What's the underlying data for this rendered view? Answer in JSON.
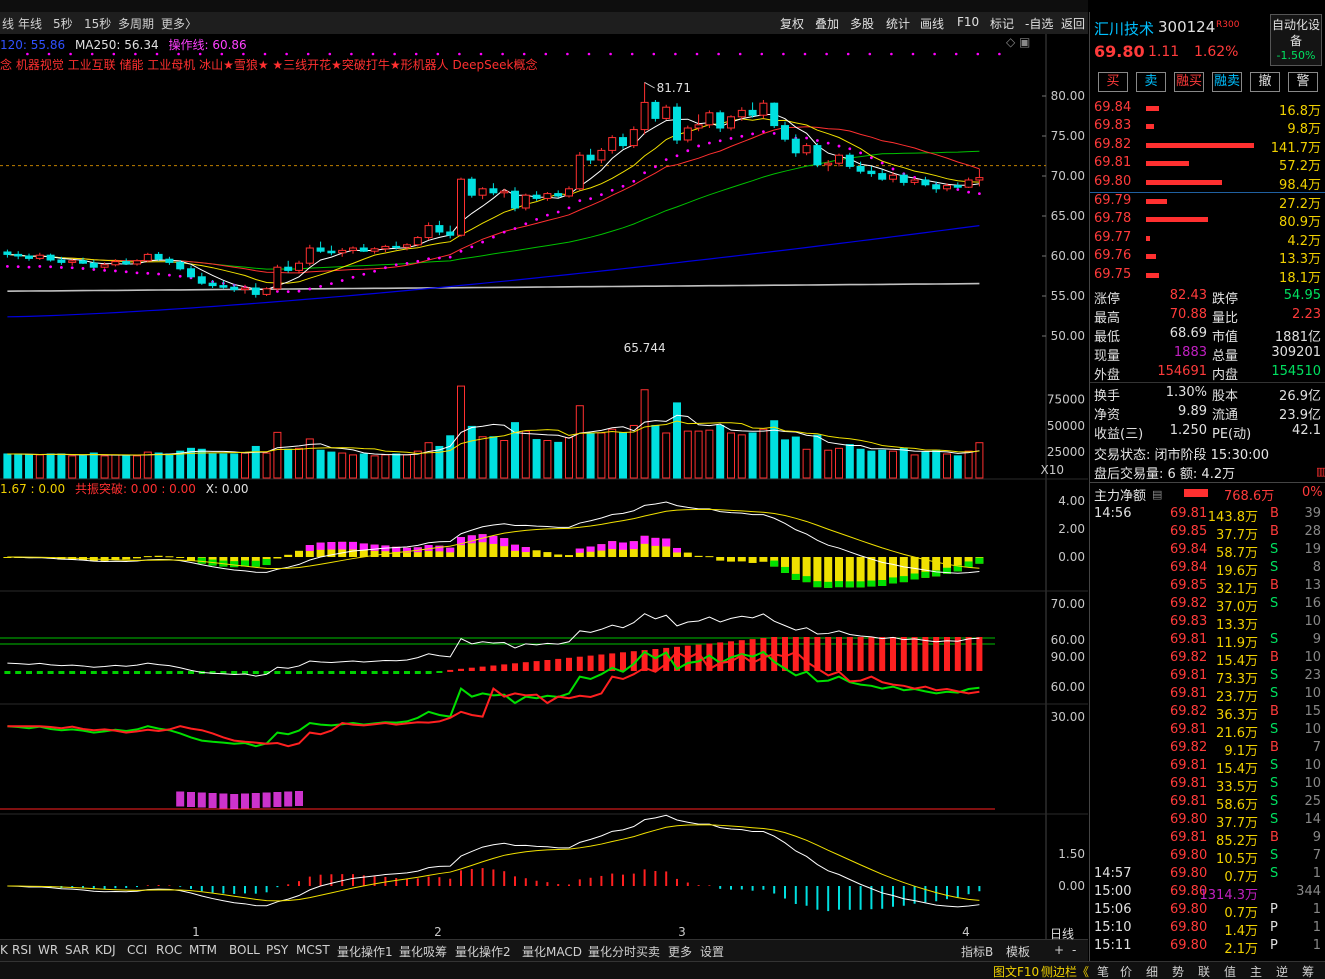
{
  "topbar": {
    "left_items": [
      "线",
      "年线",
      "5秒",
      "15秒",
      "多周期",
      "更多〉"
    ],
    "right_items": [
      "复权",
      "叠加",
      "多股",
      "统计",
      "画线",
      "F10",
      "标记",
      "-自选",
      "返回"
    ],
    "ma_line": {
      "ma120": "120: 55.86",
      "ma250": "MA250: 56.34",
      "op": "操作线: 60.86"
    },
    "concepts": "念 机器视觉 工业互联 储能 工业母机 冰山★雪狼★   ★三线开花★突破打牛★形机器人 DeepSeek概念"
  },
  "colors": {
    "up": "#ff3030",
    "down": "#00e0e0",
    "ma5": "#ffffff",
    "ma10": "#f0e000",
    "ma20": "#ff3030",
    "ma60": "#00c000",
    "ma120": "#0000e0",
    "ma250": "#c0c0c0"
  },
  "price_axis": [
    "80.00",
    "75.00",
    "70.00",
    "65.00",
    "60.00",
    "55.00",
    "50.00"
  ],
  "price_labels": {
    "high": "81.71",
    "low": "65.744"
  },
  "volume_axis": [
    "75000",
    "50000",
    "25000"
  ],
  "volume_unit": "X10",
  "macd_header": {
    "a": "1.67 : 0.00",
    "b": "共振突破: 0.00 : 0.00",
    "c": "X: 0.00"
  },
  "macd_axis": [
    "4.00",
    "2.00",
    "0.00"
  ],
  "ind2_axis": [
    "70.00",
    "60.00"
  ],
  "ind3_axis": [
    "90.00",
    "60.00",
    "30.00"
  ],
  "ind4_axis": [
    "1.50",
    "0.00"
  ],
  "month_labels": [
    "1",
    "2",
    "3",
    "4"
  ],
  "period_label": "日线",
  "bottom_tabs": [
    "K",
    "RSI",
    "WR",
    "SAR",
    "KDJ",
    "CCI",
    "ROC",
    "MTM",
    "BOLL",
    "PSY",
    "MCST",
    "量化操作1",
    "量化吸筹",
    "量化操作2",
    "量化MACD",
    "量化分时买卖",
    "更多",
    "设置"
  ],
  "bottom_right": [
    "指标B",
    "模板",
    "+",
    "-"
  ],
  "status_tabs": [
    "图文F10",
    "侧边栏《",
    "笔",
    "价",
    "细",
    "势",
    "联",
    "值",
    "主",
    "逆",
    "筹"
  ],
  "stock": {
    "name": "汇川技术",
    "code": "300124",
    "tag": "R300",
    "price": "69.80",
    "change": "1.11",
    "pct": "1.62%",
    "auto": "自动化设备",
    "auto_pct": "-1.50%"
  },
  "trade_buttons": [
    "买",
    "卖",
    "融买",
    "融卖",
    "撤",
    "警"
  ],
  "asks": [
    {
      "p": "69.84",
      "v": "16.8万",
      "w": 0.12
    },
    {
      "p": "69.83",
      "v": "9.8万",
      "w": 0.07
    },
    {
      "p": "69.82",
      "v": "141.7万",
      "w": 1.0
    },
    {
      "p": "69.81",
      "v": "57.2万",
      "w": 0.4
    },
    {
      "p": "69.80",
      "v": "98.4万",
      "w": 0.7
    }
  ],
  "bids": [
    {
      "p": "69.79",
      "v": "27.2万",
      "w": 0.19
    },
    {
      "p": "69.78",
      "v": "80.9万",
      "w": 0.57
    },
    {
      "p": "69.77",
      "v": "4.2万",
      "w": 0.03
    },
    {
      "p": "69.76",
      "v": "13.3万",
      "w": 0.09
    },
    {
      "p": "69.75",
      "v": "18.1万",
      "w": 0.12
    }
  ],
  "stats": [
    [
      "涨停",
      "82.43",
      "跌停",
      "54.95"
    ],
    [
      "最高",
      "70.88",
      "量比",
      "2.23"
    ],
    [
      "最低",
      "68.69",
      "市值",
      "1881亿"
    ],
    [
      "现量",
      "1883",
      "总量",
      "309201"
    ],
    [
      "外盘",
      "154691",
      "内盘",
      "154510"
    ],
    [
      "换手",
      "1.30%",
      "股本",
      "26.9亿"
    ],
    [
      "净资",
      "9.89",
      "流通",
      "23.9亿"
    ],
    [
      "收益(三)",
      "1.250",
      "PE(动)",
      "42.1"
    ]
  ],
  "trade_state": "交易状态: 闭市阶段 15:30:00",
  "after_hours": "盘后交易量: 6  额: 4.2万",
  "main_flow": {
    "label": "主力净额",
    "value": "768.6万",
    "pct": "0%"
  },
  "ticks": [
    {
      "t": "14:56",
      "p": "69.81",
      "v": "143.8万",
      "s": "B",
      "n": "39"
    },
    {
      "t": "",
      "p": "69.85",
      "v": "37.7万",
      "s": "B",
      "n": "28"
    },
    {
      "t": "",
      "p": "69.84",
      "v": "58.7万",
      "s": "S",
      "n": "19"
    },
    {
      "t": "",
      "p": "69.84",
      "v": "19.6万",
      "s": "S",
      "n": "8"
    },
    {
      "t": "",
      "p": "69.85",
      "v": "32.1万",
      "s": "B",
      "n": "13"
    },
    {
      "t": "",
      "p": "69.82",
      "v": "37.0万",
      "s": "S",
      "n": "16"
    },
    {
      "t": "",
      "p": "69.83",
      "v": "13.3万",
      "s": "",
      "n": "10"
    },
    {
      "t": "",
      "p": "69.81",
      "v": "11.9万",
      "s": "S",
      "n": "9"
    },
    {
      "t": "",
      "p": "69.82",
      "v": "15.4万",
      "s": "B",
      "n": "10"
    },
    {
      "t": "",
      "p": "69.81",
      "v": "73.3万",
      "s": "S",
      "n": "23"
    },
    {
      "t": "",
      "p": "69.81",
      "v": "23.7万",
      "s": "S",
      "n": "10"
    },
    {
      "t": "",
      "p": "69.82",
      "v": "36.3万",
      "s": "B",
      "n": "15"
    },
    {
      "t": "",
      "p": "69.81",
      "v": "21.6万",
      "s": "S",
      "n": "10"
    },
    {
      "t": "",
      "p": "69.82",
      "v": "9.1万",
      "s": "B",
      "n": "7"
    },
    {
      "t": "",
      "p": "69.81",
      "v": "15.4万",
      "s": "S",
      "n": "10"
    },
    {
      "t": "",
      "p": "69.81",
      "v": "33.5万",
      "s": "S",
      "n": "10"
    },
    {
      "t": "",
      "p": "69.81",
      "v": "58.6万",
      "s": "S",
      "n": "25"
    },
    {
      "t": "",
      "p": "69.80",
      "v": "37.7万",
      "s": "S",
      "n": "14"
    },
    {
      "t": "",
      "p": "69.81",
      "v": "85.2万",
      "s": "B",
      "n": "9"
    },
    {
      "t": "",
      "p": "69.80",
      "v": "10.5万",
      "s": "S",
      "n": "7"
    },
    {
      "t": "14:57",
      "p": "69.80",
      "v": "0.7万",
      "s": "S",
      "n": "1"
    },
    {
      "t": "15:00",
      "p": "69.80",
      "v": "1314.3万",
      "s": "",
      "n": "344"
    },
    {
      "t": "15:06",
      "p": "69.80",
      "v": "0.7万",
      "s": "P",
      "n": "1"
    },
    {
      "t": "15:10",
      "p": "69.80",
      "v": "1.4万",
      "s": "P",
      "n": "1"
    },
    {
      "t": "15:11",
      "p": "69.80",
      "v": "2.1万",
      "s": "P",
      "n": "1"
    }
  ],
  "chart_data": {
    "type": "candlestick",
    "ylim": [
      48,
      83
    ],
    "candles": [
      [
        60.5,
        60.8,
        59.8,
        60.2
      ],
      [
        60.2,
        60.6,
        59.6,
        60.0
      ],
      [
        60.0,
        60.3,
        59.4,
        59.7
      ],
      [
        59.7,
        60.4,
        59.5,
        60.1
      ],
      [
        60.1,
        60.3,
        59.3,
        59.5
      ],
      [
        59.5,
        59.9,
        58.9,
        59.2
      ],
      [
        59.2,
        59.6,
        58.8,
        59.4
      ],
      [
        59.4,
        59.8,
        59.0,
        59.1
      ],
      [
        59.1,
        59.5,
        58.4,
        58.6
      ],
      [
        58.6,
        59.2,
        58.4,
        58.9
      ],
      [
        58.9,
        59.6,
        58.7,
        59.3
      ],
      [
        59.3,
        59.7,
        58.9,
        59.0
      ],
      [
        59.0,
        59.6,
        58.8,
        59.4
      ],
      [
        59.4,
        60.4,
        59.2,
        60.2
      ],
      [
        60.2,
        60.5,
        59.4,
        59.6
      ],
      [
        59.6,
        59.9,
        58.9,
        59.2
      ],
      [
        59.2,
        59.5,
        58.2,
        58.4
      ],
      [
        58.4,
        58.8,
        57.2,
        57.4
      ],
      [
        57.4,
        57.9,
        56.4,
        56.6
      ],
      [
        56.6,
        57.0,
        56.0,
        56.3
      ],
      [
        56.3,
        56.9,
        55.9,
        56.1
      ],
      [
        56.1,
        56.5,
        55.5,
        55.8
      ],
      [
        55.8,
        56.4,
        55.3,
        56.0
      ],
      [
        56.0,
        56.6,
        54.8,
        55.2
      ],
      [
        55.2,
        56.1,
        55.0,
        55.9
      ],
      [
        55.9,
        58.9,
        55.6,
        58.6
      ],
      [
        58.6,
        59.4,
        57.9,
        58.2
      ],
      [
        58.2,
        59.4,
        57.8,
        59.1
      ],
      [
        59.1,
        61.4,
        58.8,
        61.0
      ],
      [
        61.0,
        61.8,
        60.4,
        60.6
      ],
      [
        60.6,
        61.3,
        60.1,
        60.4
      ],
      [
        60.4,
        61.0,
        59.9,
        60.7
      ],
      [
        60.7,
        61.2,
        60.3,
        61.0
      ],
      [
        61.0,
        61.5,
        60.5,
        60.6
      ],
      [
        60.6,
        61.1,
        60.3,
        60.9
      ],
      [
        60.9,
        61.4,
        60.5,
        61.2
      ],
      [
        61.2,
        61.8,
        60.8,
        61.1
      ],
      [
        61.1,
        61.6,
        60.7,
        61.4
      ],
      [
        61.4,
        62.5,
        61.2,
        62.3
      ],
      [
        62.3,
        64.2,
        62.0,
        63.8
      ],
      [
        63.8,
        64.4,
        62.6,
        63.0
      ],
      [
        63.0,
        63.8,
        62.2,
        62.6
      ],
      [
        62.6,
        69.8,
        62.4,
        69.6
      ],
      [
        69.6,
        69.9,
        67.3,
        67.6
      ],
      [
        67.6,
        68.6,
        67.1,
        68.4
      ],
      [
        68.4,
        69.1,
        67.6,
        67.9
      ],
      [
        67.9,
        68.4,
        67.3,
        68.1
      ],
      [
        68.1,
        68.6,
        65.6,
        66.0
      ],
      [
        66.0,
        67.8,
        65.7,
        67.6
      ],
      [
        67.6,
        68.1,
        66.9,
        67.2
      ],
      [
        67.2,
        68.0,
        66.9,
        67.8
      ],
      [
        67.8,
        68.2,
        67.3,
        67.5
      ],
      [
        67.5,
        68.7,
        67.3,
        68.4
      ],
      [
        68.4,
        73.0,
        68.2,
        72.6
      ],
      [
        72.6,
        73.4,
        71.5,
        72.0
      ],
      [
        72.0,
        73.5,
        71.6,
        73.2
      ],
      [
        73.2,
        75.1,
        72.8,
        74.8
      ],
      [
        74.8,
        75.3,
        73.4,
        73.8
      ],
      [
        73.8,
        76.2,
        73.5,
        75.8
      ],
      [
        75.8,
        81.7,
        75.2,
        79.2
      ],
      [
        79.2,
        79.5,
        76.8,
        77.2
      ],
      [
        77.2,
        78.9,
        77.0,
        78.6
      ],
      [
        78.6,
        79.1,
        74.0,
        74.5
      ],
      [
        74.5,
        76.3,
        74.2,
        76.0
      ],
      [
        76.0,
        77.7,
        75.6,
        76.4
      ],
      [
        76.4,
        78.2,
        76.0,
        77.9
      ],
      [
        77.9,
        78.2,
        75.5,
        76.0
      ],
      [
        76.0,
        77.6,
        75.7,
        77.4
      ],
      [
        77.4,
        78.6,
        76.9,
        78.2
      ],
      [
        78.2,
        79.2,
        77.3,
        77.6
      ],
      [
        77.6,
        79.5,
        77.2,
        79.1
      ],
      [
        79.1,
        79.2,
        76.0,
        76.3
      ],
      [
        76.3,
        76.8,
        74.3,
        74.6
      ],
      [
        74.6,
        75.2,
        72.4,
        72.9
      ],
      [
        72.9,
        74.1,
        72.6,
        73.8
      ],
      [
        73.8,
        74.1,
        71.1,
        71.4
      ],
      [
        71.4,
        72.0,
        70.6,
        71.6
      ],
      [
        71.6,
        72.8,
        71.2,
        72.6
      ],
      [
        72.6,
        72.9,
        70.9,
        71.2
      ],
      [
        71.2,
        71.8,
        70.3,
        70.6
      ],
      [
        70.6,
        71.2,
        69.9,
        70.3
      ],
      [
        70.3,
        70.8,
        69.4,
        69.6
      ],
      [
        69.6,
        70.5,
        69.2,
        70.1
      ],
      [
        70.1,
        70.4,
        68.8,
        69.2
      ],
      [
        69.2,
        69.8,
        68.9,
        69.5
      ],
      [
        69.5,
        69.9,
        68.7,
        68.9
      ],
      [
        68.9,
        69.3,
        67.9,
        68.4
      ],
      [
        68.4,
        69.1,
        68.1,
        68.8
      ],
      [
        68.8,
        69.2,
        68.4,
        68.6
      ],
      [
        68.6,
        69.8,
        68.5,
        69.5
      ],
      [
        69.5,
        70.9,
        68.7,
        69.8
      ]
    ]
  }
}
